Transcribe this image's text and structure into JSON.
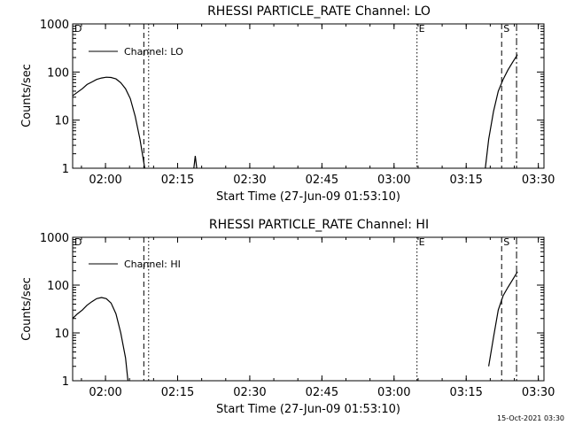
{
  "footer": {
    "timestamp": "15-Oct-2021 03:30"
  },
  "chart_data": [
    {
      "type": "line",
      "title": "RHESSI PARTICLE_RATE Channel: LO",
      "xlabel": "Start Time (27-Jun-09 01:53:10)",
      "ylabel": "Counts/sec",
      "yscale": "log",
      "xlim_minutes": [
        0,
        98
      ],
      "ylim": [
        1,
        1000
      ],
      "x_tick_labels": [
        "02:00",
        "02:15",
        "02:30",
        "02:45",
        "03:00",
        "03:15",
        "03:30"
      ],
      "x_ticks_minutes": [
        6.83,
        21.83,
        36.83,
        51.83,
        66.83,
        81.83,
        96.83
      ],
      "y_tick_labels": [
        "1",
        "10",
        "100",
        "1000"
      ],
      "y_ticks": [
        1,
        10,
        100,
        1000
      ],
      "legend": {
        "label": "Channel: LO",
        "position": "top-left"
      },
      "markers": [
        {
          "label": "",
          "minute": 14.8,
          "style": "dashed"
        },
        {
          "label": "",
          "minute": 15.8,
          "style": "dotted"
        },
        {
          "label": "E",
          "minute": 71.6,
          "style": "dotted"
        },
        {
          "label": "S",
          "minute": 89.2,
          "style": "dashed"
        },
        {
          "label": "",
          "minute": 92.3,
          "style": "dashdot"
        }
      ],
      "corner_labels": {
        "left": "D"
      },
      "series": [
        {
          "points": [
            [
              0,
              32
            ],
            [
              1,
              38
            ],
            [
              2,
              45
            ],
            [
              3,
              55
            ],
            [
              4,
              62
            ],
            [
              5,
              70
            ],
            [
              6,
              75
            ],
            [
              7,
              78
            ],
            [
              8,
              77
            ],
            [
              9,
              72
            ],
            [
              10,
              60
            ],
            [
              11,
              45
            ],
            [
              12,
              28
            ],
            [
              13,
              12
            ],
            [
              14,
              4
            ],
            [
              15,
              1
            ]
          ],
          "segments": [
            [
              [
                0,
                32
              ],
              [
                1,
                38
              ],
              [
                2,
                45
              ],
              [
                3,
                55
              ],
              [
                4,
                62
              ],
              [
                5,
                70
              ],
              [
                6,
                75
              ],
              [
                7,
                78
              ],
              [
                8,
                77
              ],
              [
                9,
                72
              ],
              [
                10,
                60
              ],
              [
                11,
                45
              ],
              [
                12,
                28
              ],
              [
                13,
                12
              ],
              [
                14,
                4
              ],
              [
                15,
                1
              ]
            ],
            [
              [
                25.2,
                1
              ],
              [
                25.5,
                1.8
              ],
              [
                25.8,
                1
              ]
            ],
            [
              [
                85.8,
                1
              ],
              [
                86.5,
                4
              ],
              [
                87.5,
                15
              ],
              [
                88.5,
                40
              ],
              [
                89.5,
                70
              ],
              [
                90.5,
                110
              ],
              [
                91.5,
                160
              ],
              [
                92.5,
                230
              ]
            ]
          ]
        }
      ]
    },
    {
      "type": "line",
      "title": "RHESSI PARTICLE_RATE Channel: HI",
      "xlabel": "Start Time (27-Jun-09 01:53:10)",
      "ylabel": "Counts/sec",
      "yscale": "log",
      "xlim_minutes": [
        0,
        98
      ],
      "ylim": [
        1,
        1000
      ],
      "x_tick_labels": [
        "02:00",
        "02:15",
        "02:30",
        "02:45",
        "03:00",
        "03:15",
        "03:30"
      ],
      "x_ticks_minutes": [
        6.83,
        21.83,
        36.83,
        51.83,
        66.83,
        81.83,
        96.83
      ],
      "y_tick_labels": [
        "1",
        "10",
        "100",
        "1000"
      ],
      "y_ticks": [
        1,
        10,
        100,
        1000
      ],
      "legend": {
        "label": "Channel: HI",
        "position": "top-left"
      },
      "markers": [
        {
          "label": "",
          "minute": 14.8,
          "style": "dashed"
        },
        {
          "label": "",
          "minute": 15.8,
          "style": "dotted"
        },
        {
          "label": "E",
          "minute": 71.6,
          "style": "dotted"
        },
        {
          "label": "S",
          "minute": 89.2,
          "style": "dashed"
        },
        {
          "label": "",
          "minute": 92.3,
          "style": "dashdot"
        }
      ],
      "corner_labels": {
        "left": "D"
      },
      "series": [
        {
          "segments": [
            [
              [
                0,
                20
              ],
              [
                1,
                25
              ],
              [
                2,
                30
              ],
              [
                3,
                38
              ],
              [
                4,
                45
              ],
              [
                5,
                52
              ],
              [
                6,
                55
              ],
              [
                7,
                52
              ],
              [
                8,
                42
              ],
              [
                9,
                25
              ],
              [
                10,
                10
              ],
              [
                11,
                3
              ],
              [
                11.5,
                1
              ]
            ],
            [
              [
                86.5,
                2
              ],
              [
                87.5,
                8
              ],
              [
                88.5,
                30
              ],
              [
                89.5,
                60
              ],
              [
                90.5,
                90
              ],
              [
                91.5,
                130
              ],
              [
                92.5,
                190
              ]
            ]
          ]
        }
      ]
    }
  ]
}
